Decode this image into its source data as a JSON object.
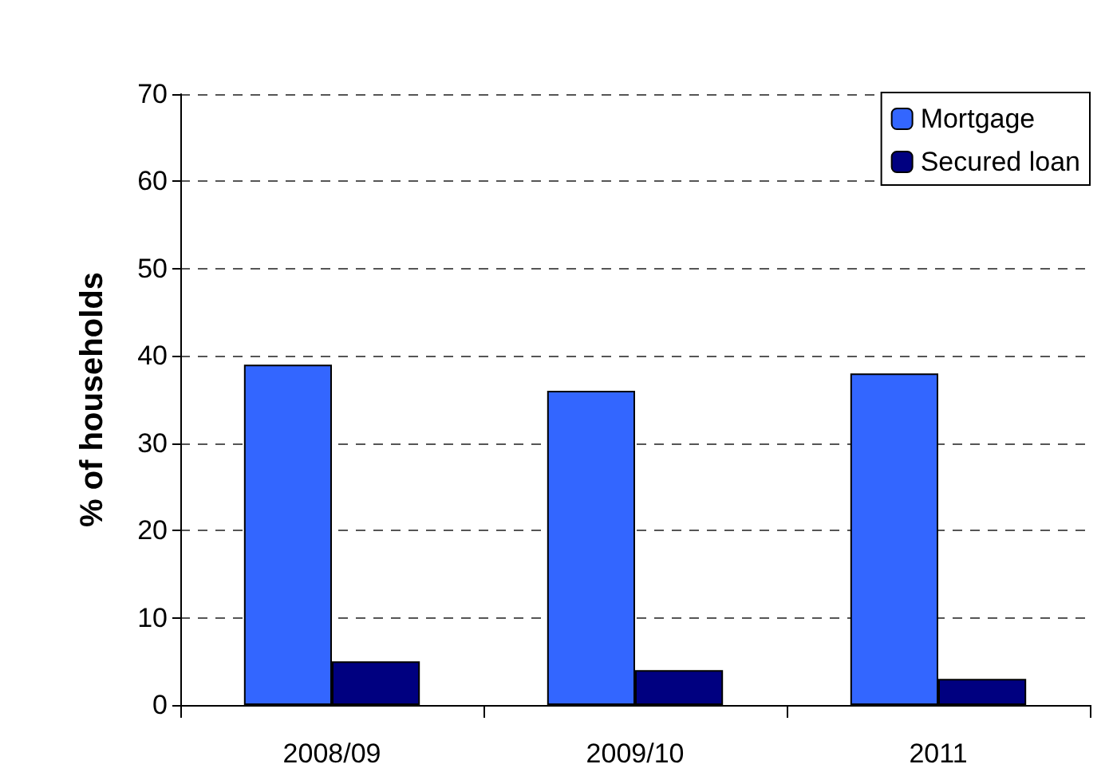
{
  "chart_data": {
    "type": "bar",
    "ylabel": "% of households",
    "categories": [
      "2008/09",
      "2009/10",
      "2011"
    ],
    "series": [
      {
        "name": "Mortgage",
        "color": "#3366ff",
        "values": [
          39,
          36,
          38
        ]
      },
      {
        "name": "Secured loan",
        "color": "#000080",
        "values": [
          5,
          4,
          3
        ]
      }
    ],
    "ylim": [
      0,
      70
    ],
    "yticks": [
      0,
      10,
      20,
      30,
      40,
      50,
      60,
      70
    ],
    "grid": "y",
    "legend": "top right"
  }
}
